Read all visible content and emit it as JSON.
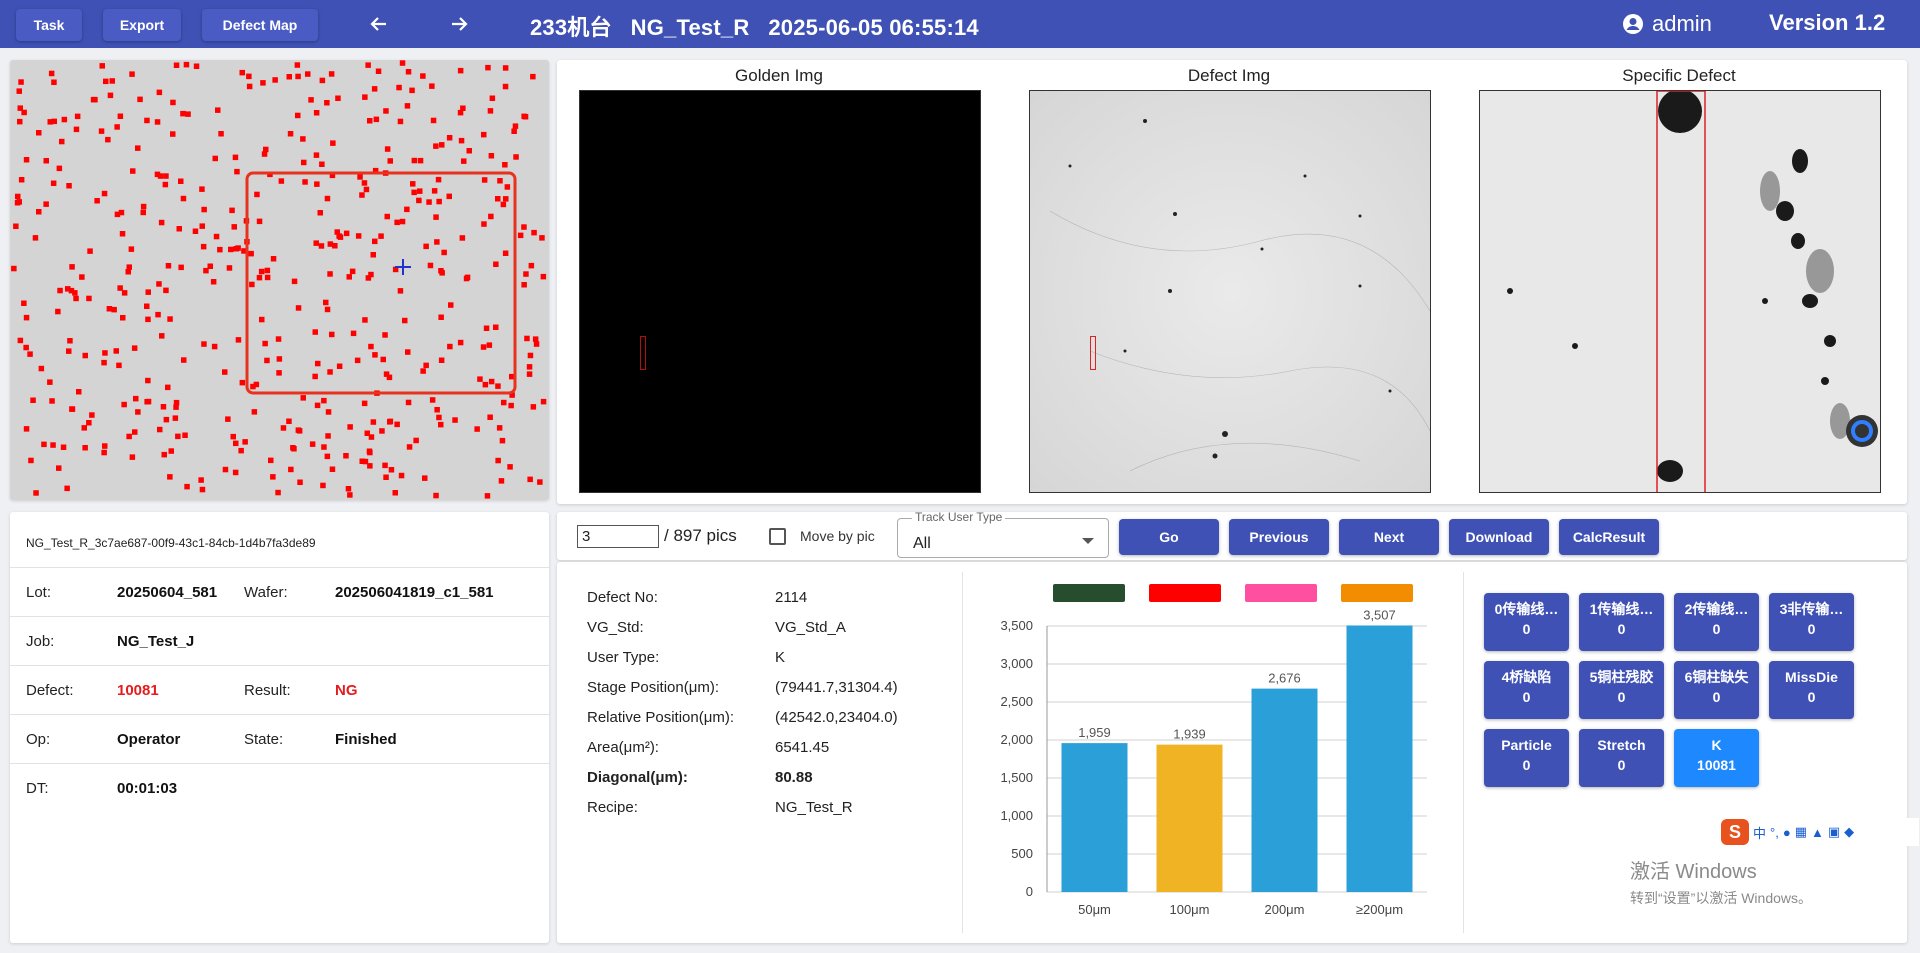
{
  "topbar": {
    "buttons": [
      "Task",
      "Export",
      "Defect Map"
    ],
    "title": "233机台   NG_Test_R   2025-06-05 06:55:14",
    "user": "admin",
    "version": "Version 1.2"
  },
  "images": {
    "golden_title": "Golden Img",
    "defect_title": "Defect Img",
    "specific_title": "Specific Defect"
  },
  "info": {
    "uuid": "NG_Test_R_3c7ae687-00f9-43c1-84cb-1d4b7fa3de89",
    "lot_label": "Lot:",
    "lot": "20250604_581",
    "wafer_label": "Wafer:",
    "wafer": "202506041819_c1_581",
    "job_label": "Job:",
    "job": "NG_Test_J",
    "defect_label": "Defect:",
    "defect": "10081",
    "result_label": "Result:",
    "result": "NG",
    "op_label": "Op:",
    "op": "Operator",
    "state_label": "State:",
    "state": "Finished",
    "dt_label": "DT:",
    "dt": "00:01:03"
  },
  "toolbar": {
    "page": "3",
    "total": "/ 897 pics",
    "move_by_pic": "Move by pic",
    "track_label": "Track User Type",
    "track_value": "All",
    "buttons": [
      "Go",
      "Previous",
      "Next",
      "Download",
      "CalcResult"
    ]
  },
  "details": {
    "defect_no_label": "Defect No:",
    "defect_no": "2114",
    "vg_std_label": "VG_Std:",
    "vg_std": "VG_Std_A",
    "user_type_label": "User Type:",
    "user_type": "K",
    "stage_label": "Stage Position(μm):",
    "stage": "(79441.7,31304.4)",
    "relative_label": "Relative Position(μm):",
    "relative": "(42542.0,23404.0)",
    "area_label": "Area(μm²):",
    "area": "6541.45",
    "diagonal_label": "Diagonal(μm):",
    "diagonal": "80.88",
    "recipe_label": "Recipe:",
    "recipe": "NG_Test_R"
  },
  "chart_data": {
    "type": "bar",
    "categories": [
      "50μm",
      "100μm",
      "200μm",
      "≥200μm"
    ],
    "values": [
      1959,
      1939,
      2676,
      3507
    ],
    "value_labels": [
      "1,959",
      "1,939",
      "2,676",
      "3,507"
    ],
    "bar_colors": [
      "#2b9fd8",
      "#f0b323",
      "#2b9fd8",
      "#2b9fd8"
    ],
    "legend_colors": [
      "#264d2e",
      "#ff0000",
      "#ff4fa0",
      "#f28c00"
    ],
    "ylim": [
      0,
      3500
    ],
    "yticks": [
      "0",
      "500",
      "1,000",
      "1,500",
      "2,000",
      "2,500",
      "3,000",
      "3,500"
    ],
    "grid": true,
    "legend_position": "top"
  },
  "categories": [
    {
      "label": "0传输线…",
      "count": "0"
    },
    {
      "label": "1传输线…",
      "count": "0"
    },
    {
      "label": "2传输线…",
      "count": "0"
    },
    {
      "label": "3非传输…",
      "count": "0"
    },
    {
      "label": "4桥缺陷",
      "count": "0"
    },
    {
      "label": "5铜柱残胶",
      "count": "0"
    },
    {
      "label": "6铜柱缺失",
      "count": "0"
    },
    {
      "label": "MissDie",
      "count": "0"
    },
    {
      "label": "Particle",
      "count": "0"
    },
    {
      "label": "Stretch",
      "count": "0"
    },
    {
      "label": "K",
      "count": "10081"
    }
  ],
  "system": {
    "ime_char": "中",
    "activate_title": "激活 Windows",
    "activate_sub": "转到“设置”以激活 Windows。"
  }
}
